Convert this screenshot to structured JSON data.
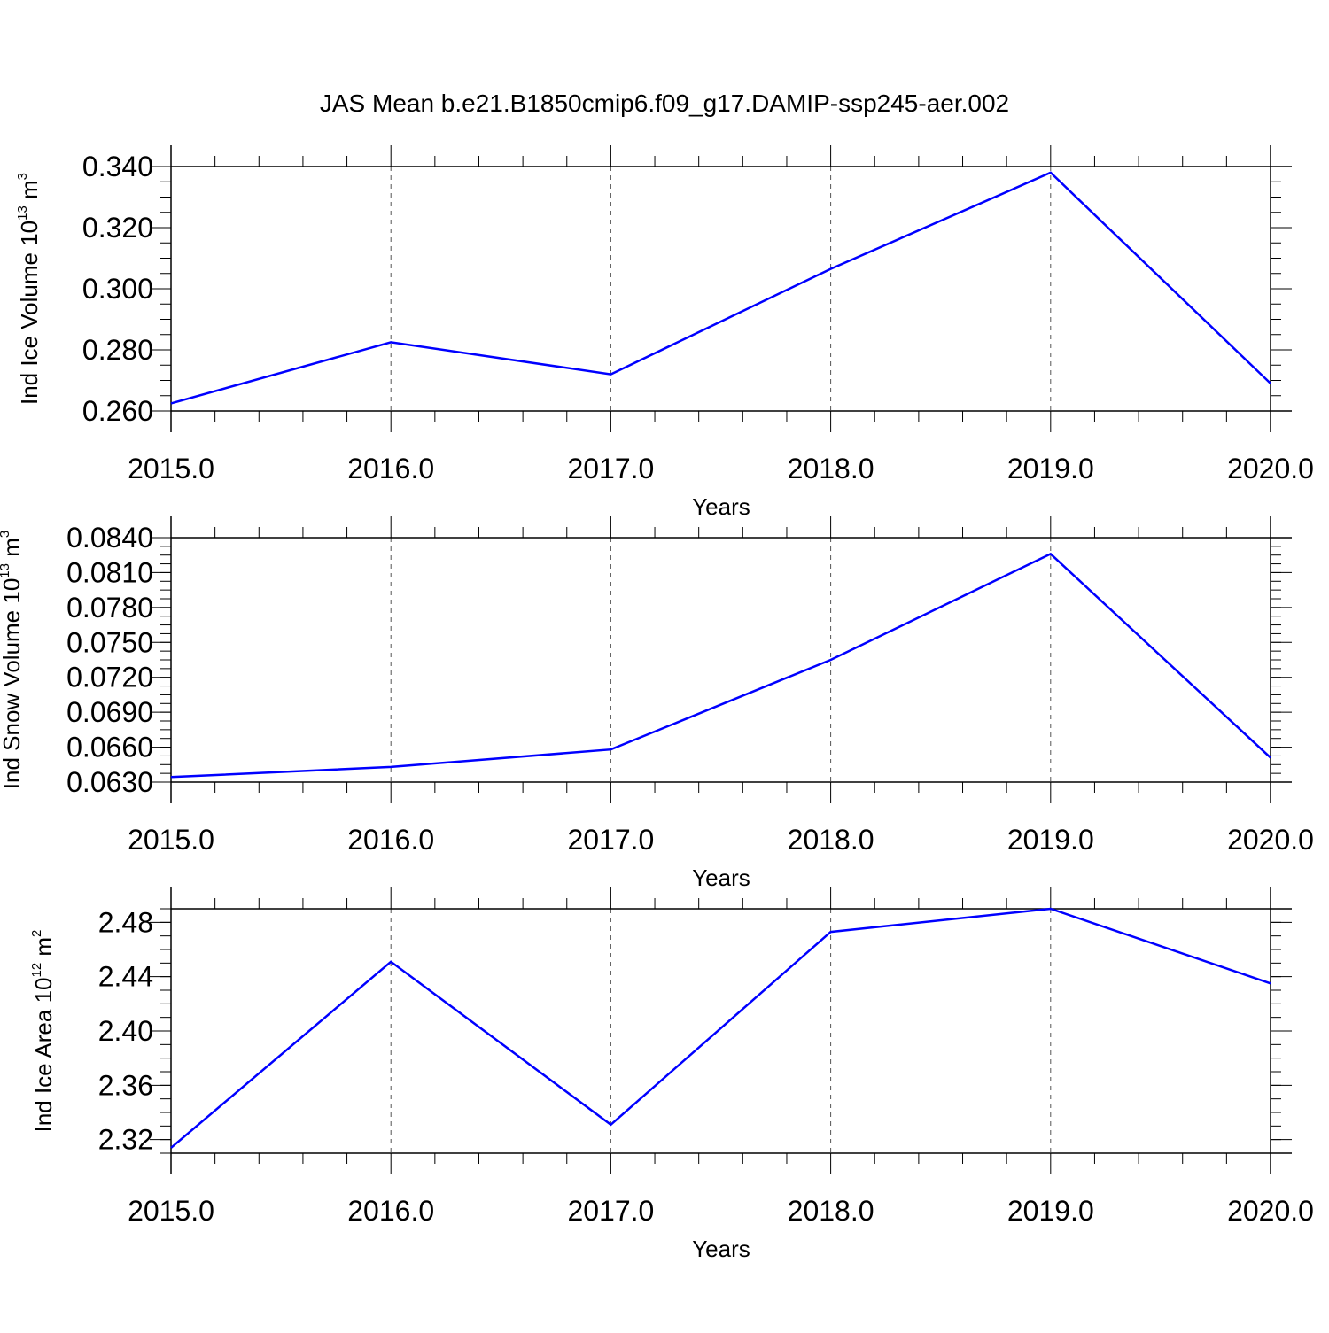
{
  "title": "JAS Mean b.e21.B1850cmip6.f09_g17.DAMIP-ssp245-aer.002",
  "colors": {
    "line": "#0000ff",
    "axis": "#000000",
    "grid": "#555555"
  },
  "chart_data": [
    {
      "type": "line",
      "panel": "top",
      "ylabel": {
        "base": "Ind Ice Volume 10",
        "exp": "13",
        "unit": " m",
        "unit_exp": "3"
      },
      "xlabel": "Years",
      "x": [
        2015,
        2016,
        2017,
        2018,
        2019,
        2020
      ],
      "xticks": [
        "2015.0",
        "2016.0",
        "2017.0",
        "2018.0",
        "2019.0",
        "2020.0"
      ],
      "xlim": [
        2015,
        2020.1
      ],
      "ylim": [
        0.26,
        0.34
      ],
      "yticks": [
        "0.260",
        "0.280",
        "0.300",
        "0.320",
        "0.340"
      ],
      "ytick_values": [
        0.26,
        0.28,
        0.3,
        0.32,
        0.34
      ],
      "yminor_step": 0.005,
      "grid": "vertical dashed at major x ticks",
      "series": [
        {
          "values": [
            0.2625,
            0.2825,
            0.272,
            0.3065,
            0.338,
            0.269
          ]
        }
      ]
    },
    {
      "type": "line",
      "panel": "middle",
      "ylabel": {
        "base": "Ind Snow Volume 10",
        "exp": "13",
        "unit": " m",
        "unit_exp": "3"
      },
      "xlabel": "Years",
      "x": [
        2015,
        2016,
        2017,
        2018,
        2019,
        2020
      ],
      "xticks": [
        "2015.0",
        "2016.0",
        "2017.0",
        "2018.0",
        "2019.0",
        "2020.0"
      ],
      "xlim": [
        2015,
        2020.1
      ],
      "ylim": [
        0.063,
        0.084
      ],
      "yticks": [
        "0.0630",
        "0.0660",
        "0.0690",
        "0.0720",
        "0.0750",
        "0.0780",
        "0.0810",
        "0.0840"
      ],
      "ytick_values": [
        0.063,
        0.066,
        0.069,
        0.072,
        0.075,
        0.078,
        0.081,
        0.084
      ],
      "yminor_step": 0.00075,
      "grid": "vertical dashed at major x ticks",
      "series": [
        {
          "values": [
            0.06343,
            0.0643,
            0.0658,
            0.0735,
            0.0826,
            0.0651
          ]
        }
      ]
    },
    {
      "type": "line",
      "panel": "bottom",
      "ylabel": {
        "base": "Ind Ice Area 10",
        "exp": "12",
        "unit": " m",
        "unit_exp": "2"
      },
      "xlabel": "Years",
      "x": [
        2015,
        2016,
        2017,
        2018,
        2019,
        2020
      ],
      "xticks": [
        "2015.0",
        "2016.0",
        "2017.0",
        "2018.0",
        "2019.0",
        "2020.0"
      ],
      "xlim": [
        2015,
        2020.1
      ],
      "ylim": [
        2.31,
        2.49
      ],
      "yticks": [
        "2.32",
        "2.36",
        "2.40",
        "2.44",
        "2.48"
      ],
      "ytick_values": [
        2.32,
        2.36,
        2.4,
        2.44,
        2.48
      ],
      "yminor_step": 0.01,
      "grid": "vertical dashed at major x ticks",
      "series": [
        {
          "values": [
            2.314,
            2.451,
            2.331,
            2.473,
            2.49,
            2.435
          ]
        }
      ]
    }
  ]
}
